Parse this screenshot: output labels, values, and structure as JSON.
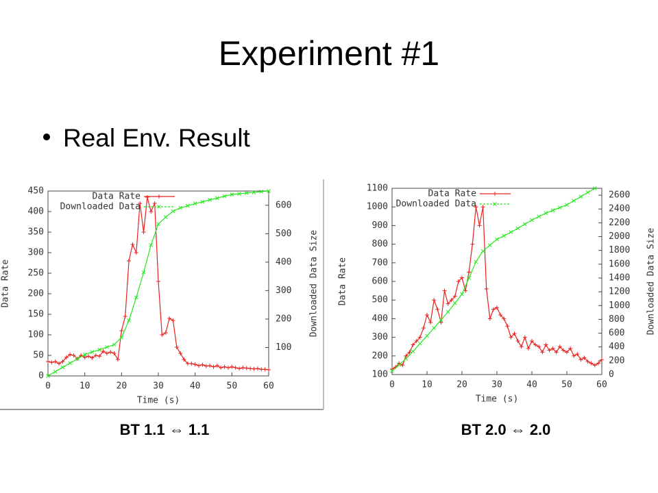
{
  "title": "Experiment #1",
  "bullet": "Real Env. Result",
  "chart_data": [
    {
      "type": "line",
      "caption": "BT 1.1 ⇔ 1.1",
      "xlabel": "Time (s)",
      "ylabel": "Data Rate",
      "y2label": "Downloaded Data Size",
      "xlim": [
        0,
        60
      ],
      "xticks": [
        0,
        10,
        20,
        30,
        40,
        50,
        60
      ],
      "ylim": [
        0,
        450
      ],
      "yticks": [
        0,
        50,
        100,
        150,
        200,
        250,
        300,
        350,
        400,
        450
      ],
      "y2lim": [
        0,
        650
      ],
      "y2ticks": [
        100,
        200,
        300,
        400,
        500,
        600
      ],
      "grid": false,
      "legend": "top-left",
      "series": [
        {
          "name": "Data Rate",
          "color": "#e8201c",
          "marker": "+",
          "x": [
            0,
            1,
            2,
            3,
            4,
            5,
            6,
            7,
            8,
            9,
            10,
            11,
            12,
            13,
            14,
            15,
            16,
            17,
            18,
            19,
            20,
            21,
            22,
            23,
            24,
            25,
            26,
            27,
            28,
            29,
            30,
            31,
            32,
            33,
            34,
            35,
            36,
            37,
            38,
            39,
            40,
            41,
            42,
            43,
            44,
            45,
            46,
            47,
            48,
            49,
            50,
            51,
            52,
            53,
            54,
            55,
            56,
            57,
            58,
            59,
            60
          ],
          "values": [
            35,
            33,
            35,
            30,
            35,
            45,
            52,
            50,
            42,
            50,
            45,
            48,
            44,
            50,
            48,
            60,
            55,
            58,
            55,
            40,
            110,
            145,
            280,
            320,
            300,
            420,
            350,
            435,
            400,
            420,
            230,
            100,
            105,
            140,
            135,
            70,
            55,
            40,
            30,
            30,
            28,
            25,
            27,
            24,
            25,
            22,
            25,
            20,
            22,
            20,
            22,
            20,
            18,
            20,
            19,
            18,
            17,
            18,
            16,
            16,
            15
          ]
        },
        {
          "name": "Downloaded Data",
          "color": "#22e81c",
          "marker": "x",
          "axis": "y2",
          "x": [
            0,
            2,
            4,
            6,
            8,
            10,
            12,
            14,
            16,
            18,
            20,
            22,
            24,
            26,
            28,
            30,
            32,
            34,
            36,
            38,
            40,
            42,
            44,
            46,
            48,
            50,
            52,
            54,
            56,
            58,
            60
          ],
          "values": [
            0,
            15,
            30,
            45,
            60,
            75,
            84,
            92,
            101,
            110,
            135,
            195,
            276,
            364,
            460,
            534,
            558,
            579,
            591,
            598,
            606,
            612,
            619,
            625,
            632,
            638,
            640,
            643,
            645,
            648,
            650
          ]
        }
      ]
    },
    {
      "type": "line",
      "caption": "BT 2.0 ⇔ 2.0",
      "xlabel": "Time (s)",
      "ylabel": "Data Rate",
      "y2label": "Downloaded Data Size",
      "xlim": [
        0,
        60
      ],
      "xticks": [
        0,
        10,
        20,
        30,
        40,
        50,
        60
      ],
      "ylim": [
        100,
        1100
      ],
      "yticks": [
        100,
        200,
        300,
        400,
        500,
        600,
        700,
        800,
        900,
        1000,
        1100
      ],
      "y2lim": [
        0,
        2700
      ],
      "y2ticks": [
        0,
        200,
        400,
        600,
        800,
        1000,
        1200,
        1400,
        1600,
        1800,
        2000,
        2200,
        2400,
        2600
      ],
      "grid": false,
      "legend": "top-left",
      "series": [
        {
          "name": "Data Rate",
          "color": "#e8201c",
          "marker": "+",
          "x": [
            0,
            1,
            2,
            3,
            4,
            5,
            6,
            7,
            8,
            9,
            10,
            11,
            12,
            13,
            14,
            15,
            16,
            17,
            18,
            19,
            20,
            21,
            22,
            23,
            24,
            25,
            26,
            27,
            28,
            29,
            30,
            31,
            32,
            33,
            34,
            35,
            36,
            37,
            38,
            39,
            40,
            41,
            42,
            43,
            44,
            45,
            46,
            47,
            48,
            49,
            50,
            51,
            52,
            53,
            54,
            55,
            56,
            57,
            58,
            59,
            60
          ],
          "values": [
            130,
            140,
            160,
            150,
            200,
            220,
            260,
            280,
            300,
            350,
            420,
            380,
            500,
            450,
            380,
            550,
            480,
            500,
            520,
            600,
            620,
            550,
            650,
            800,
            1000,
            900,
            1000,
            560,
            400,
            450,
            460,
            420,
            400,
            360,
            300,
            320,
            280,
            250,
            300,
            240,
            280,
            260,
            250,
            220,
            260,
            230,
            240,
            220,
            250,
            230,
            220,
            240,
            200,
            210,
            180,
            190,
            170,
            160,
            150,
            160,
            180
          ]
        },
        {
          "name": "Downloaded Data",
          "color": "#22e81c",
          "marker": "x",
          "axis": "y2",
          "x": [
            0,
            2,
            4,
            6,
            8,
            10,
            12,
            14,
            16,
            18,
            20,
            22,
            24,
            26,
            28,
            30,
            32,
            34,
            36,
            38,
            40,
            42,
            44,
            46,
            48,
            50,
            52,
            54,
            56,
            58
          ],
          "values": [
            50,
            140,
            230,
            335,
            450,
            560,
            675,
            790,
            910,
            1035,
            1165,
            1400,
            1635,
            1790,
            1875,
            1960,
            2010,
            2065,
            2120,
            2180,
            2240,
            2290,
            2340,
            2380,
            2420,
            2460,
            2520,
            2580,
            2640,
            2700
          ]
        }
      ]
    }
  ]
}
